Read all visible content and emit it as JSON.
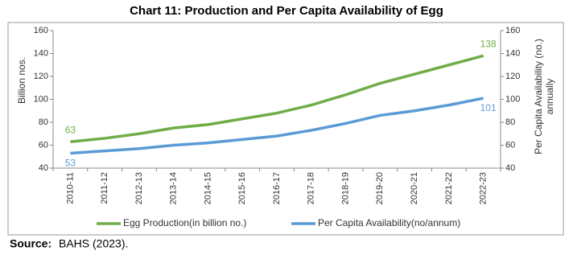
{
  "chart_data": {
    "type": "line",
    "title": "Chart 11: Production and Per Capita Availability of Egg",
    "ylabel": "Billion nos.",
    "y2label": [
      "Per Capita Availability (no.)",
      "annually"
    ],
    "categories": [
      "2010-11",
      "2011-12",
      "2012-13",
      "2013-14",
      "2014-15",
      "2015-16",
      "2016-17",
      "2017-18",
      "2018-19",
      "2019-20",
      "2020-21",
      "2021-22",
      "2022-23"
    ],
    "series": [
      {
        "name": "Egg Production(in billion no.)",
        "color": "#70ad47",
        "values": [
          63,
          66,
          70,
          75,
          78,
          83,
          88,
          95,
          104,
          114,
          122,
          130,
          138
        ]
      },
      {
        "name": "Per Capita Availability(no/annum)",
        "color": "#5b9bd5",
        "axis": "y2",
        "values": [
          53,
          55,
          57,
          60,
          62,
          65,
          68,
          73,
          79,
          86,
          90,
          95,
          101
        ]
      }
    ],
    "ylim": [
      40,
      160
    ],
    "yticks": [
      40,
      60,
      80,
      100,
      120,
      140,
      160
    ],
    "y2lim": [
      40,
      160
    ],
    "y2ticks": [
      40,
      60,
      80,
      100,
      120,
      140,
      160
    ],
    "grid": false,
    "legend": "bottom"
  },
  "source": {
    "label": "Source:",
    "text": "BAHS (2023)."
  }
}
